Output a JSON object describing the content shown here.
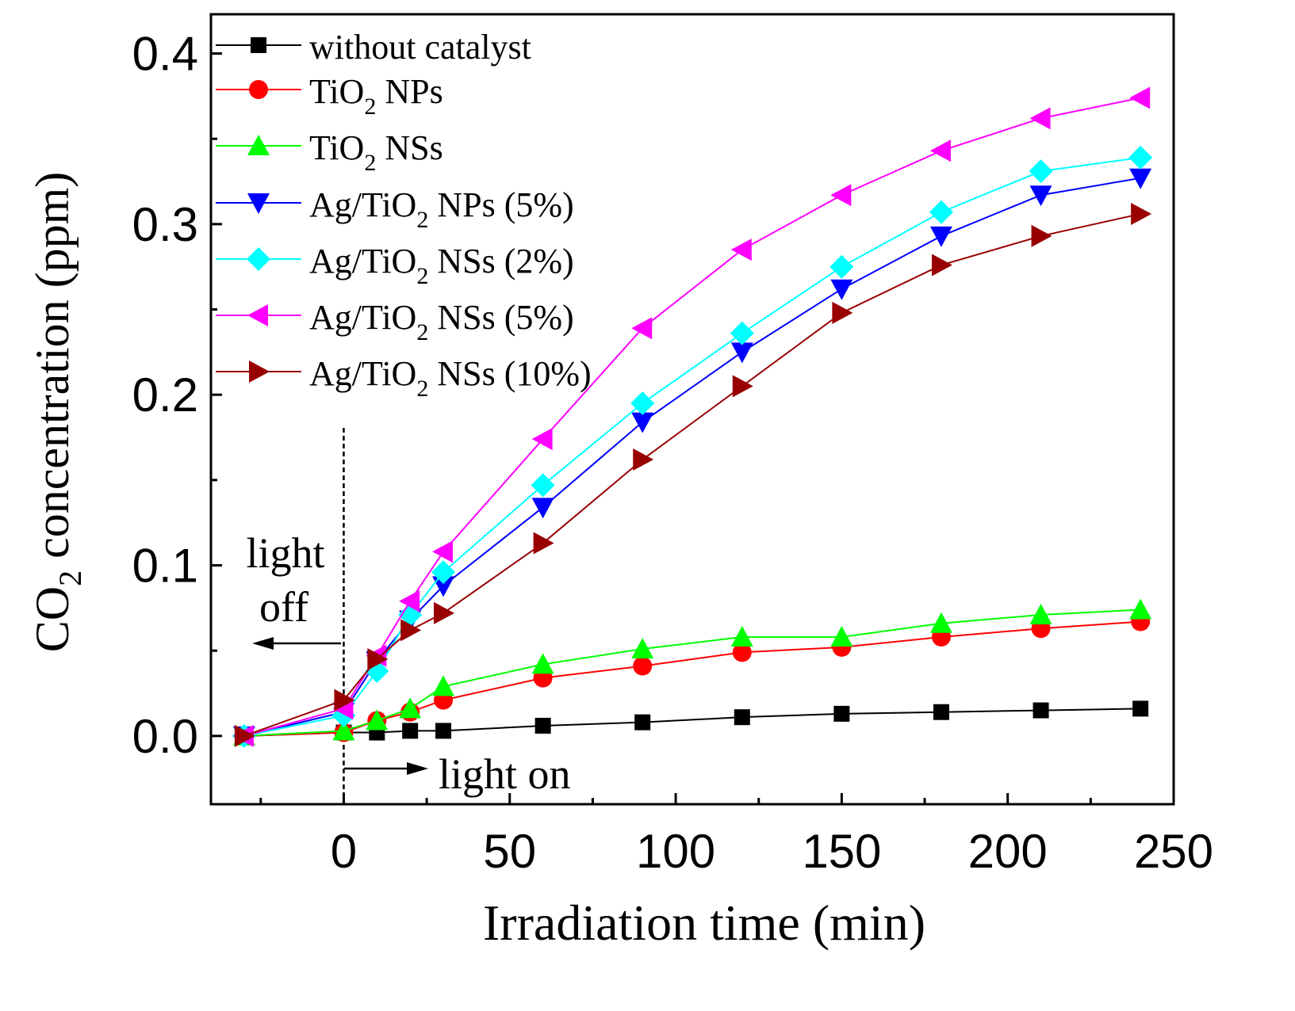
{
  "chart_data": {
    "type": "line",
    "xlabel": "Irradiation time (min)",
    "ylabel_parts": [
      "CO",
      "2",
      " concentration (ppm)"
    ],
    "xlim": [
      -40,
      250
    ],
    "ylim": [
      -0.04,
      0.423
    ],
    "xticks": [
      0,
      50,
      100,
      150,
      200,
      250
    ],
    "xtick_labels": [
      "0",
      "50",
      "100",
      "150",
      "200",
      "250"
    ],
    "xminor": [
      -25,
      25,
      75,
      125,
      175,
      225
    ],
    "yticks": [
      0.0,
      0.1,
      0.2,
      0.3,
      0.4
    ],
    "ytick_labels": [
      "0.0",
      "0.1",
      "0.2",
      "0.3",
      "0.4"
    ],
    "yminor": [
      0.05,
      0.15,
      0.25,
      0.35
    ],
    "grid": false,
    "legend_position": "top-left",
    "x": [
      -30,
      0,
      10,
      20,
      30,
      60,
      90,
      120,
      150,
      180,
      210,
      240
    ],
    "series": [
      {
        "name": "without catalyst",
        "label_parts": [
          "without catalyst",
          "",
          ""
        ],
        "color": "#000000",
        "marker": "square",
        "values": [
          0,
          0.002,
          0.002,
          0.003,
          0.003,
          0.006,
          0.008,
          0.011,
          0.013,
          0.014,
          0.015,
          0.016
        ]
      },
      {
        "name": "TiO2 NPs",
        "label_parts": [
          "TiO",
          "2",
          " NPs"
        ],
        "color": "#ff0000",
        "marker": "circle",
        "values": [
          0,
          0.002,
          0.009,
          0.014,
          0.021,
          0.034,
          0.041,
          0.049,
          0.052,
          0.058,
          0.063,
          0.067
        ]
      },
      {
        "name": "TiO2 NSs",
        "label_parts": [
          "TiO",
          "2",
          " NSs"
        ],
        "color": "#00ff00",
        "marker": "triangle-up",
        "values": [
          0,
          0.003,
          0.009,
          0.016,
          0.029,
          0.042,
          0.051,
          0.058,
          0.058,
          0.066,
          0.071,
          0.074
        ]
      },
      {
        "name": "Ag/TiO2 NPs (5%)",
        "label_parts": [
          "Ag/TiO",
          "2",
          " NPs (5%)"
        ],
        "color": "#0000ff",
        "marker": "triangle-down",
        "values": [
          0,
          0.014,
          0.044,
          0.068,
          0.088,
          0.134,
          0.184,
          0.225,
          0.262,
          0.293,
          0.317,
          0.327
        ]
      },
      {
        "name": "Ag/TiO2 NSs (2%)",
        "label_parts": [
          "Ag/TiO",
          "2",
          " NSs (2%)"
        ],
        "color": "#00ffff",
        "marker": "diamond",
        "values": [
          0,
          0.012,
          0.038,
          0.071,
          0.096,
          0.147,
          0.195,
          0.236,
          0.275,
          0.307,
          0.331,
          0.339
        ]
      },
      {
        "name": "Ag/TiO2 NSs (5%)",
        "label_parts": [
          "Ag/TiO",
          "2",
          " NSs (5%)"
        ],
        "color": "#ff00ff",
        "marker": "triangle-left",
        "values": [
          0,
          0.016,
          0.047,
          0.079,
          0.108,
          0.174,
          0.239,
          0.285,
          0.317,
          0.343,
          0.362,
          0.374
        ]
      },
      {
        "name": "Ag/TiO2 NSs (10%)",
        "label_parts": [
          "Ag/TiO",
          "2",
          " NSs (10%)"
        ],
        "color": "#990000",
        "marker": "triangle-right",
        "values": [
          0,
          0.021,
          0.045,
          0.062,
          0.072,
          0.113,
          0.162,
          0.205,
          0.248,
          0.276,
          0.293,
          0.306
        ]
      }
    ],
    "annotations": {
      "light_off_line1": "light",
      "light_off_line2": "off",
      "light_on": "light on",
      "light_switch_time": 0
    }
  }
}
